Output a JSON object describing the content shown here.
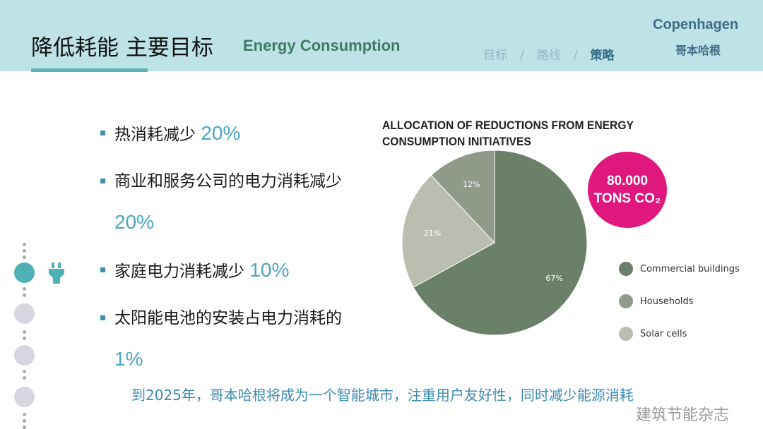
{
  "header": {
    "title": "降低耗能 主要目标",
    "subtitle": "Energy Consumption",
    "breadcrumb": [
      "目标",
      "路线",
      "策略"
    ],
    "separator": "/",
    "brand": "Copenhagen",
    "brand_cn": "哥本哈根"
  },
  "bullets": [
    {
      "text": "热消耗减少 ",
      "pct": "20%"
    },
    {
      "text": "商业和服务公司的电力消耗减少 ",
      "pct": "20%"
    },
    {
      "text": "家庭电力消耗减少 ",
      "pct": "10%"
    },
    {
      "text": "太阳能电池的安装占电力消耗的 ",
      "pct": "1%"
    }
  ],
  "badge": {
    "line1": "80.000",
    "line2": "TONS CO₂"
  },
  "footer": "到2025年，哥本哈根将成为一个智能城市，注重用户友好性，同时减少能源消耗",
  "watermark": "建筑节能杂志",
  "nav": {
    "active_index": 0,
    "icon": "plug-icon"
  },
  "chart_data": {
    "type": "pie",
    "title": "ALLOCATION OF REDUCTIONS FROM ENERGY CONSUMPTION INITIATIVES",
    "slices": [
      {
        "name": "Commercial buildings",
        "value": 67,
        "label": "67%",
        "color": "#6b8068"
      },
      {
        "name": "Solar cells",
        "value": 21,
        "label": "21%",
        "color": "#b9beb0"
      },
      {
        "name": "Households",
        "value": 12,
        "label": "12%",
        "color": "#8f9a88"
      }
    ],
    "legend_order": [
      0,
      2,
      1
    ],
    "legend_position": "right"
  }
}
